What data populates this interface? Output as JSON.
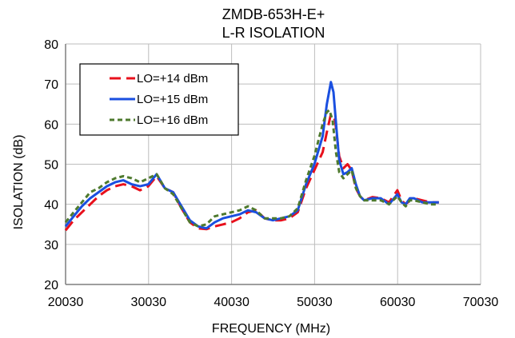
{
  "chart_data": {
    "type": "line",
    "title": "ZMDB-653H-E+",
    "subtitle": "L-R ISOLATION",
    "xlabel": "FREQUENCY (MHz)",
    "ylabel": "ISOLATION (dB)",
    "xlim": [
      20030,
      70030
    ],
    "ylim": [
      20,
      80
    ],
    "xticks": [
      20030,
      30030,
      40030,
      50030,
      60030,
      70030
    ],
    "yticks": [
      20,
      30,
      40,
      50,
      60,
      70,
      80
    ],
    "grid": true,
    "legend_position": "top-left",
    "series": [
      {
        "name": "LO=+14 dBm",
        "color": "#e8101c",
        "dash": "long-dash",
        "x": [
          20030,
          21000,
          22000,
          23000,
          24000,
          25000,
          26000,
          27000,
          28000,
          29000,
          30000,
          31000,
          32000,
          33000,
          34000,
          35000,
          36000,
          37000,
          38000,
          39000,
          40000,
          41000,
          42000,
          43000,
          44000,
          45000,
          46000,
          47000,
          48000,
          49000,
          50000,
          51000,
          51500,
          52000,
          52500,
          53000,
          53500,
          54000,
          54500,
          55000,
          55500,
          56000,
          57000,
          58000,
          59000,
          60000,
          60500,
          61000,
          61500,
          62000,
          63000,
          64000,
          65000
        ],
        "y": [
          33.5,
          36,
          38,
          40,
          42,
          43.5,
          44.5,
          45,
          44.5,
          43.5,
          44.5,
          47,
          44,
          43,
          39,
          35.5,
          34,
          33.8,
          34.5,
          35,
          35.5,
          36.5,
          38,
          38.5,
          36.5,
          36,
          36,
          36.5,
          38,
          44,
          48.5,
          53,
          58,
          62.5,
          61,
          52,
          49,
          50,
          48.5,
          44,
          42,
          41,
          41.8,
          41.5,
          40.5,
          43.5,
          41,
          40,
          41,
          41.5,
          41,
          40.5,
          40.5
        ]
      },
      {
        "name": "LO=+15 dBm",
        "color": "#1a4fe0",
        "dash": "solid",
        "x": [
          20030,
          21000,
          22000,
          23000,
          24000,
          25000,
          26000,
          27000,
          28000,
          29000,
          30000,
          31000,
          32000,
          33000,
          34000,
          35000,
          36000,
          37000,
          38000,
          39000,
          40000,
          41000,
          42000,
          43000,
          44000,
          45000,
          46000,
          47000,
          48000,
          49000,
          50000,
          51000,
          51500,
          52000,
          52300,
          52700,
          53000,
          53500,
          54000,
          54500,
          55000,
          55500,
          56000,
          57000,
          58000,
          59000,
          60000,
          60500,
          61000,
          61500,
          62000,
          63000,
          64000,
          65000
        ],
        "y": [
          34.5,
          37,
          39.5,
          41.5,
          43,
          44.5,
          45.5,
          46,
          45,
          44.5,
          45,
          47.5,
          44,
          43,
          39.5,
          36,
          34.5,
          34,
          35.5,
          36.5,
          37,
          37.5,
          38.5,
          38,
          36.5,
          36,
          36.5,
          37,
          38.5,
          45,
          50,
          57,
          65,
          70.5,
          68,
          58,
          51,
          47.5,
          48,
          49,
          45,
          42,
          41,
          41.5,
          41.5,
          40,
          42.5,
          40.5,
          40,
          41.5,
          41.5,
          40.5,
          40.5,
          40.5
        ]
      },
      {
        "name": "LO=+16 dBm",
        "color": "#4e7a2e",
        "dash": "short-dash",
        "x": [
          20030,
          21000,
          22000,
          23000,
          24000,
          25000,
          26000,
          27000,
          28000,
          29000,
          30000,
          31000,
          32000,
          33000,
          34000,
          35000,
          36000,
          37000,
          38000,
          39000,
          40000,
          41000,
          42000,
          43000,
          44000,
          45000,
          46000,
          47000,
          48000,
          49000,
          50000,
          51000,
          51500,
          51800,
          52200,
          52600,
          53000,
          53500,
          54000,
          54500,
          55000,
          55500,
          56000,
          57000,
          58000,
          59000,
          60000,
          60500,
          61000,
          61500,
          62000,
          63000,
          64000,
          65000
        ],
        "y": [
          35.5,
          38,
          40.5,
          43,
          44,
          45.5,
          46.5,
          47,
          46.5,
          45.5,
          46.5,
          47.5,
          44,
          42.5,
          39,
          35.5,
          34.5,
          35,
          37,
          37.5,
          38,
          38.5,
          39.5,
          38.5,
          36.5,
          36.5,
          36.5,
          37,
          39,
          46,
          52,
          60,
          63,
          63.5,
          61,
          53,
          48,
          46.5,
          47.5,
          48.5,
          44,
          42,
          41,
          41,
          41,
          40,
          42,
          40.5,
          39.5,
          41,
          41,
          40.5,
          40,
          40
        ]
      }
    ]
  }
}
